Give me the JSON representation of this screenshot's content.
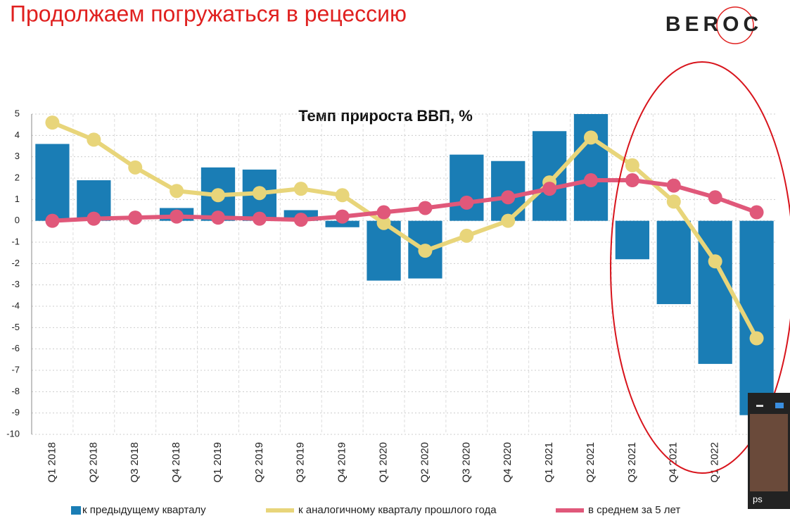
{
  "header": {
    "title": "Продолжаем погружаться в рецессию",
    "logo": "BEROC"
  },
  "chart_data": {
    "type": "bar",
    "title": "Темп прироста ВВП, %",
    "categories": [
      "Q1 2018",
      "Q2 2018",
      "Q3 2018",
      "Q4 2018",
      "Q1 2019",
      "Q2 2019",
      "Q3 2019",
      "Q4 2019",
      "Q1 2020",
      "Q2 2020",
      "Q3 2020",
      "Q4 2020",
      "Q1 2021",
      "Q2 2021",
      "Q3 2021",
      "Q4 2021",
      "Q1 2022",
      null
    ],
    "series": [
      {
        "name": "к предыдущему кварталу",
        "type": "bar",
        "color": "#1a7db5",
        "values": [
          3.6,
          1.9,
          0,
          0.6,
          2.5,
          2.4,
          0.5,
          -0.3,
          -2.8,
          -2.7,
          3.1,
          2.8,
          4.2,
          5.0,
          -1.8,
          -3.9,
          -6.7,
          -9.1
        ]
      },
      {
        "name": "к аналогичному кварталу прошлого года",
        "type": "line",
        "color": "#e8d57a",
        "values": [
          4.6,
          3.8,
          2.5,
          1.4,
          1.2,
          1.3,
          1.5,
          1.2,
          -0.1,
          -1.4,
          -0.7,
          0.0,
          1.8,
          3.9,
          2.6,
          0.9,
          -1.9,
          -5.5
        ]
      },
      {
        "name": "в среднем за 5 лет",
        "type": "line",
        "color": "#e0587a",
        "values": [
          0.0,
          0.1,
          0.15,
          0.2,
          0.15,
          0.1,
          0.05,
          0.2,
          0.4,
          0.6,
          0.85,
          1.1,
          1.5,
          1.9,
          1.9,
          1.65,
          1.1,
          0.4
        ]
      }
    ],
    "ylim": [
      -10,
      5
    ],
    "yticks": [
      5,
      4,
      3,
      2,
      1,
      0,
      -1,
      -2,
      -3,
      -4,
      -5,
      -6,
      -7,
      -8,
      -9,
      -10
    ],
    "grid": true,
    "legend": "bottom"
  },
  "overlay": {
    "label": "ps"
  }
}
